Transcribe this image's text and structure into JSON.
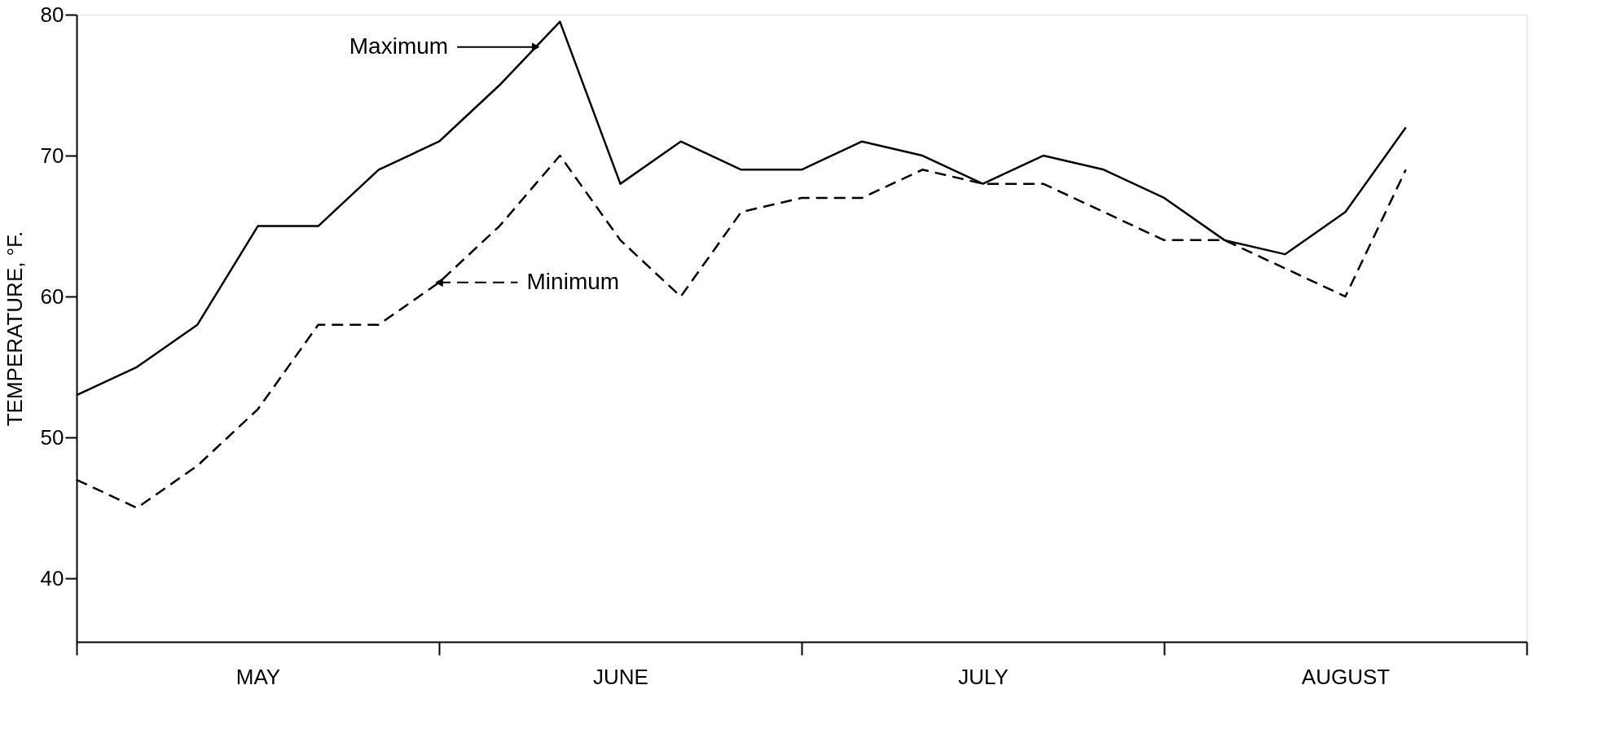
{
  "chart_data": {
    "type": "line",
    "ylabel": "TEMPERATURE, °F.",
    "categories": [
      null,
      null,
      null,
      "MAY",
      null,
      null,
      null,
      null,
      null,
      "JUNE",
      null,
      null,
      null,
      null,
      null,
      "JULY",
      null,
      null,
      null,
      null,
      null,
      "AUGUST",
      null
    ],
    "series": [
      {
        "name": "Maximum",
        "color": "#000000",
        "line_style": "solid",
        "values": [
          53,
          55,
          58,
          65,
          65,
          69,
          71,
          75,
          79.5,
          68,
          71,
          69,
          69,
          71,
          70,
          68,
          70,
          69,
          67,
          64,
          63,
          66,
          72
        ]
      },
      {
        "name": "Minimum",
        "color": "#000000",
        "line_style": "dashed",
        "values": [
          47,
          45,
          48,
          52,
          58,
          58,
          61,
          65,
          70,
          64,
          60,
          66,
          67,
          67,
          69,
          68,
          68,
          66,
          64,
          64,
          62,
          60,
          69
        ]
      }
    ],
    "ylim": [
      35.5,
      80
    ],
    "yticks": [
      40,
      50,
      60,
      70,
      80
    ],
    "grid": false
  }
}
